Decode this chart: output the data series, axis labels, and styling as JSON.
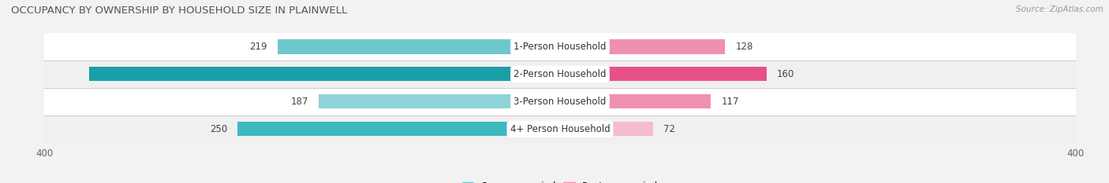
{
  "title": "OCCUPANCY BY OWNERSHIP BY HOUSEHOLD SIZE IN PLAINWELL",
  "source": "Source: ZipAtlas.com",
  "categories": [
    "1-Person Household",
    "2-Person Household",
    "3-Person Household",
    "4+ Person Household"
  ],
  "owner_values": [
    219,
    365,
    187,
    250
  ],
  "renter_values": [
    128,
    160,
    117,
    72
  ],
  "owner_colors": [
    "#6dc8cc",
    "#1a9ea8",
    "#8dd4d8",
    "#3dbac0"
  ],
  "renter_colors": [
    "#f090b0",
    "#e8508a",
    "#f090b0",
    "#f5bcd0"
  ],
  "axis_max": 400,
  "bg_color": "#f2f2f2",
  "row_colors": [
    "#ffffff",
    "#f0f0f0",
    "#ffffff",
    "#f0f0f0"
  ],
  "label_fontsize": 8.5,
  "title_fontsize": 9.5,
  "source_fontsize": 7.5,
  "bar_height": 0.52
}
